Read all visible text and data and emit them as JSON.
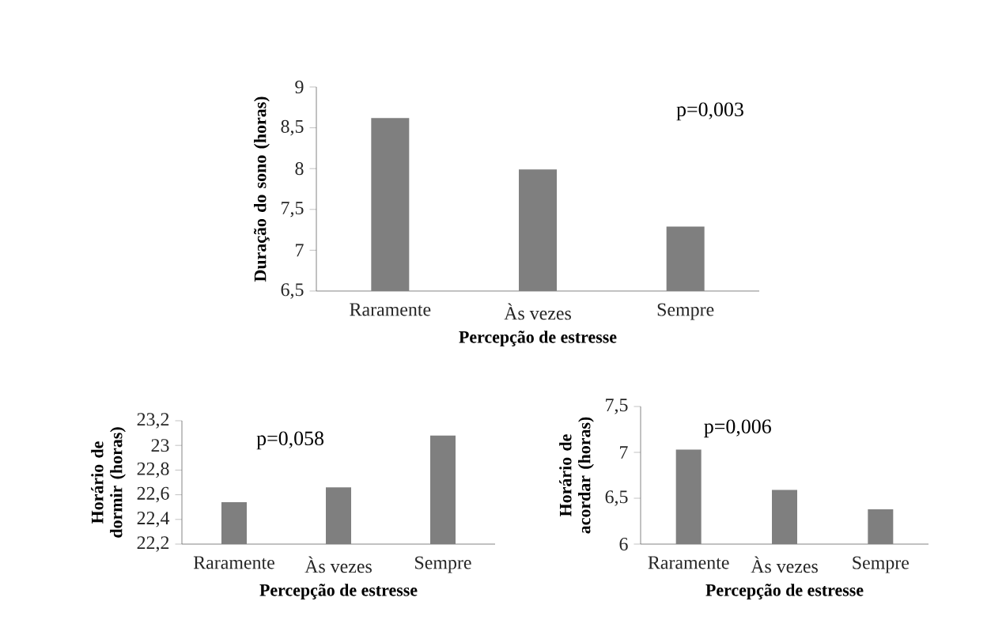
{
  "chart_data": [
    {
      "type": "bar",
      "categories": [
        "Raramente",
        "Às vezes",
        "Sempre"
      ],
      "values": [
        8.62,
        7.99,
        7.29
      ],
      "color": "#7f7f7f",
      "ylim": [
        6.5,
        9
      ],
      "yticks": [
        {
          "value": 6.5,
          "label": "6,5"
        },
        7,
        {
          "value": 7.5,
          "label": "7,5"
        },
        8,
        {
          "value": 8.5,
          "label": "8,5"
        },
        9
      ],
      "xlabel": "Percepção de estresse",
      "ylabel": "Duração do sono (horas)",
      "annotations": [
        "p=0,003"
      ]
    },
    {
      "type": "bar",
      "categories": [
        "Raramente",
        "Às vezes",
        "Sempre"
      ],
      "values": [
        22.54,
        22.66,
        23.08
      ],
      "color": "#7f7f7f",
      "ylim": [
        22.2,
        23.2
      ],
      "yticks": [
        {
          "value": 22.2,
          "label": "22,2"
        },
        {
          "value": 22.4,
          "label": "22,4"
        },
        {
          "value": 22.6,
          "label": "22,6"
        },
        {
          "value": 22.8,
          "label": "22,8"
        },
        23,
        {
          "value": 23.2,
          "label": "23,2"
        }
      ],
      "xlabel": "Percepção de estresse",
      "ylabel": "Horário de dormir (horas)",
      "annotations": [
        "p=0,058"
      ]
    },
    {
      "type": "bar",
      "categories": [
        "Raramente",
        "Às vezes",
        "Sempre"
      ],
      "values": [
        7.03,
        6.59,
        6.38
      ],
      "color": "#7f7f7f",
      "ylim": [
        6,
        7.5
      ],
      "yticks": [
        6,
        {
          "value": 6.5,
          "label": "6,5"
        },
        7,
        {
          "value": 7.5,
          "label": "7,5"
        }
      ],
      "xlabel": "Percepção de estresse",
      "ylabel": "Horário de acordar (horas)",
      "annotations": [
        "p=0,006"
      ]
    }
  ]
}
